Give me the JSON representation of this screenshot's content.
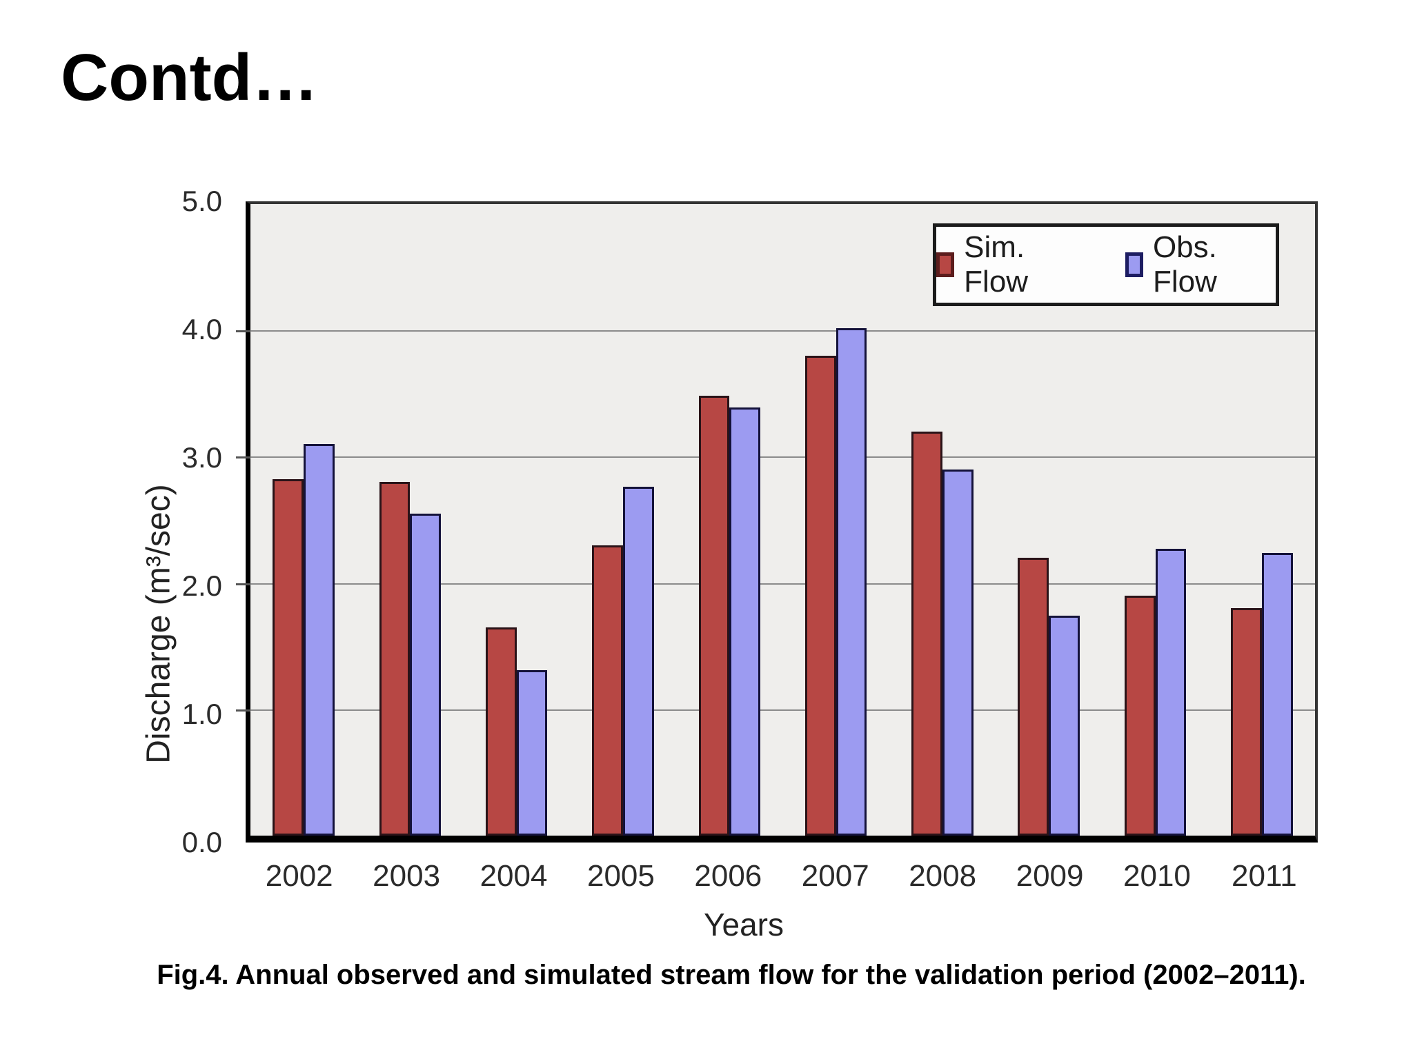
{
  "page": {
    "title": "Contd…",
    "caption": "Fig.4. Annual observed and simulated stream flow for the validation period (2002–2011)."
  },
  "chart_data": {
    "type": "bar",
    "title": "",
    "xlabel": "Years",
    "ylabel": "Discharge (m³/sec)",
    "ylim": [
      0,
      5
    ],
    "yticks": [
      "5.0",
      "4.0",
      "3.0",
      "2.0",
      "1.0",
      "0.0"
    ],
    "grid": true,
    "legend_position": "top-right-inside",
    "categories": [
      "2002",
      "2003",
      "2004",
      "2005",
      "2006",
      "2007",
      "2008",
      "2009",
      "2010",
      "2011"
    ],
    "series": [
      {
        "name": "Sim. Flow",
        "color": "#b74744",
        "values": [
          2.82,
          2.8,
          1.65,
          2.3,
          3.48,
          3.8,
          3.2,
          2.2,
          1.9,
          1.8
        ]
      },
      {
        "name": "Obs. Flow",
        "color": "#9c9bf1",
        "values": [
          3.1,
          2.55,
          1.31,
          2.76,
          3.39,
          4.02,
          2.9,
          1.74,
          2.27,
          2.24
        ]
      }
    ]
  }
}
